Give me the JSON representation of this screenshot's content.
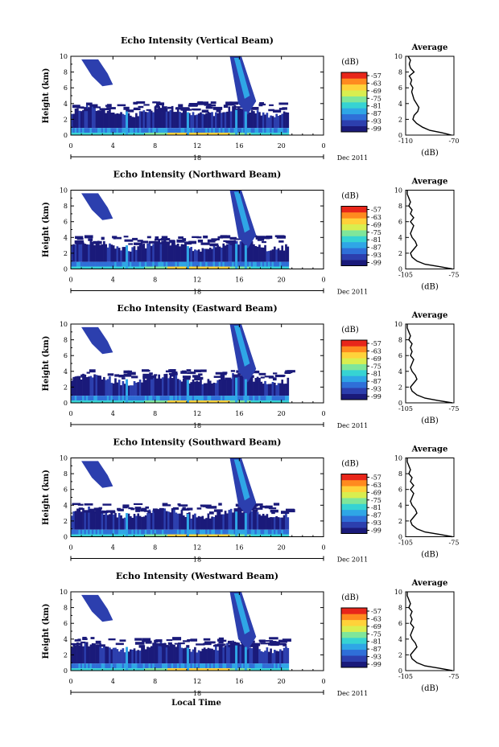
{
  "chart_data": [
    {
      "type": "heatmap",
      "title": "Echo Intensity (Vertical Beam)",
      "ylabel": "Height (km)",
      "ylim": [
        0,
        10
      ],
      "yticks": [
        "0",
        "2",
        "4",
        "6",
        "8",
        "10"
      ],
      "xticks": [
        "0",
        "4",
        "8",
        "12",
        "16",
        "20",
        "0"
      ],
      "xlim": [
        0,
        24
      ],
      "day_label": "18",
      "date_label": "Dec 2011",
      "colorbar": {
        "unit": "(dB)",
        "ticks": [
          "-57",
          "-63",
          "-69",
          "-75",
          "-81",
          "-87",
          "-93",
          "-99"
        ],
        "colors": [
          "#1a1a7a",
          "#2c3fae",
          "#2f6fd8",
          "#2fa6e6",
          "#36d3d3",
          "#7fe69a",
          "#d9ee4f",
          "#ffd23a",
          "#ff8a1f",
          "#e8261a"
        ]
      },
      "profile": {
        "title": "Average",
        "xlabel": "(dB)",
        "xticks": [
          "-110",
          "-70"
        ],
        "xlim": [
          -110,
          -70
        ],
        "height": [
          0,
          0.3,
          0.6,
          1.0,
          1.5,
          2.0,
          2.5,
          3.0,
          3.5,
          4.0,
          4.5,
          5.0,
          5.5,
          6.0,
          6.5,
          7.0,
          7.5,
          8.0,
          8.5,
          9.0,
          9.5,
          10.0
        ],
        "value": [
          -72,
          -80,
          -90,
          -96,
          -101,
          -104,
          -103,
          -100,
          -99,
          -101,
          -103,
          -104,
          -105,
          -104,
          -106,
          -105,
          -107,
          -103,
          -106,
          -107,
          -106,
          -108
        ]
      }
    },
    {
      "type": "heatmap",
      "title": "Echo Intensity (Northward Beam)",
      "ylabel": "Height (km)",
      "ylim": [
        0,
        10
      ],
      "yticks": [
        "0",
        "2",
        "4",
        "6",
        "8",
        "10"
      ],
      "xticks": [
        "0",
        "4",
        "8",
        "12",
        "16",
        "20",
        "0"
      ],
      "xlim": [
        0,
        24
      ],
      "day_label": "18",
      "date_label": "Dec 2011",
      "colorbar": {
        "unit": "(dB)",
        "ticks": [
          "-57",
          "-63",
          "-69",
          "-75",
          "-81",
          "-87",
          "-93",
          "-99"
        ],
        "colors": [
          "#1a1a7a",
          "#2c3fae",
          "#2f6fd8",
          "#2fa6e6",
          "#36d3d3",
          "#7fe69a",
          "#d9ee4f",
          "#ffd23a",
          "#ff8a1f",
          "#e8261a"
        ]
      },
      "profile": {
        "title": "Average",
        "xlabel": "(dB)",
        "xticks": [
          "-105",
          "-75"
        ],
        "xlim": [
          -105,
          -75
        ],
        "height": [
          0,
          0.3,
          0.6,
          1.0,
          1.5,
          2.0,
          2.5,
          3.0,
          3.5,
          4.0,
          4.5,
          5.0,
          5.5,
          6.0,
          6.5,
          7.0,
          7.5,
          8.0,
          8.5,
          9.0,
          9.5,
          10.0
        ],
        "value": [
          -76,
          -84,
          -93,
          -98,
          -101,
          -102,
          -100,
          -98,
          -99,
          -101,
          -102,
          -101,
          -100,
          -102,
          -100,
          -102,
          -101,
          -103,
          -102,
          -103,
          -104,
          -104
        ]
      }
    },
    {
      "type": "heatmap",
      "title": "Echo Intensity (Eastward Beam)",
      "ylabel": "Height (km)",
      "ylim": [
        0,
        10
      ],
      "yticks": [
        "0",
        "2",
        "4",
        "6",
        "8",
        "10"
      ],
      "xticks": [
        "0",
        "4",
        "8",
        "12",
        "16",
        "20",
        "0"
      ],
      "xlim": [
        0,
        24
      ],
      "day_label": "18",
      "date_label": "Dec 2011",
      "colorbar": {
        "unit": "(dB)",
        "ticks": [
          "-57",
          "-63",
          "-69",
          "-75",
          "-81",
          "-87",
          "-93",
          "-99"
        ],
        "colors": [
          "#1a1a7a",
          "#2c3fae",
          "#2f6fd8",
          "#2fa6e6",
          "#36d3d3",
          "#7fe69a",
          "#d9ee4f",
          "#ffd23a",
          "#ff8a1f",
          "#e8261a"
        ]
      },
      "profile": {
        "title": "Average",
        "xlabel": "(dB)",
        "xticks": [
          "-105",
          "-75"
        ],
        "xlim": [
          -105,
          -75
        ],
        "height": [
          0,
          0.3,
          0.6,
          1.0,
          1.5,
          2.0,
          2.5,
          3.0,
          3.5,
          4.0,
          4.5,
          5.0,
          5.5,
          6.0,
          6.5,
          7.0,
          7.5,
          8.0,
          8.5,
          9.0,
          9.5,
          10.0
        ],
        "value": [
          -76,
          -85,
          -93,
          -98,
          -101,
          -102,
          -100,
          -98,
          -99,
          -101,
          -102,
          -101,
          -100,
          -102,
          -101,
          -102,
          -101,
          -103,
          -102,
          -103,
          -104,
          -104
        ]
      }
    },
    {
      "type": "heatmap",
      "title": "Echo Intensity (Southward Beam)",
      "ylabel": "Height (km)",
      "ylim": [
        0,
        10
      ],
      "yticks": [
        "0",
        "2",
        "4",
        "6",
        "8",
        "10"
      ],
      "xticks": [
        "0",
        "4",
        "8",
        "12",
        "16",
        "20",
        "0"
      ],
      "xlim": [
        0,
        24
      ],
      "day_label": "18",
      "date_label": "Dec 2011",
      "colorbar": {
        "unit": "(dB)",
        "ticks": [
          "-57",
          "-63",
          "-69",
          "-75",
          "-81",
          "-87",
          "-93",
          "-99"
        ],
        "colors": [
          "#1a1a7a",
          "#2c3fae",
          "#2f6fd8",
          "#2fa6e6",
          "#36d3d3",
          "#7fe69a",
          "#d9ee4f",
          "#ffd23a",
          "#ff8a1f",
          "#e8261a"
        ]
      },
      "profile": {
        "title": "Average",
        "xlabel": "(dB)",
        "xticks": [
          "-105",
          "-75"
        ],
        "xlim": [
          -105,
          -75
        ],
        "height": [
          0,
          0.3,
          0.6,
          1.0,
          1.5,
          2.0,
          2.5,
          3.0,
          3.5,
          4.0,
          4.5,
          5.0,
          5.5,
          6.0,
          6.5,
          7.0,
          7.5,
          8.0,
          8.5,
          9.0,
          9.5,
          10.0
        ],
        "value": [
          -76,
          -84,
          -93,
          -98,
          -101,
          -102,
          -100,
          -98,
          -99,
          -101,
          -102,
          -101,
          -100,
          -102,
          -100,
          -102,
          -101,
          -103,
          -102,
          -103,
          -104,
          -104
        ]
      }
    },
    {
      "type": "heatmap",
      "title": "Echo Intensity (Westward Beam)",
      "ylabel": "Height (km)",
      "ylim": [
        0,
        10
      ],
      "yticks": [
        "0",
        "2",
        "4",
        "6",
        "8",
        "10"
      ],
      "xticks": [
        "0",
        "4",
        "8",
        "12",
        "16",
        "20",
        "0"
      ],
      "xlim": [
        0,
        24
      ],
      "day_label": "18",
      "date_label": "Dec 2011",
      "xlabel": "Local Time",
      "colorbar": {
        "unit": "(dB)",
        "ticks": [
          "-57",
          "-63",
          "-69",
          "-75",
          "-81",
          "-87",
          "-93",
          "-99"
        ],
        "colors": [
          "#1a1a7a",
          "#2c3fae",
          "#2f6fd8",
          "#2fa6e6",
          "#36d3d3",
          "#7fe69a",
          "#d9ee4f",
          "#ffd23a",
          "#ff8a1f",
          "#e8261a"
        ]
      },
      "profile": {
        "title": "Average",
        "xlabel": "(dB)",
        "xticks": [
          "-105",
          "-75"
        ],
        "xlim": [
          -105,
          -75
        ],
        "height": [
          0,
          0.3,
          0.6,
          1.0,
          1.5,
          2.0,
          2.5,
          3.0,
          3.5,
          4.0,
          4.5,
          5.0,
          5.5,
          6.0,
          6.5,
          7.0,
          7.5,
          8.0,
          8.5,
          9.0,
          9.5,
          10.0
        ],
        "value": [
          -76,
          -84,
          -93,
          -98,
          -101,
          -102,
          -100,
          -98,
          -99,
          -101,
          -102,
          -101,
          -100,
          -102,
          -101,
          -102,
          -101,
          -103,
          -102,
          -103,
          -104,
          -104
        ]
      }
    }
  ]
}
